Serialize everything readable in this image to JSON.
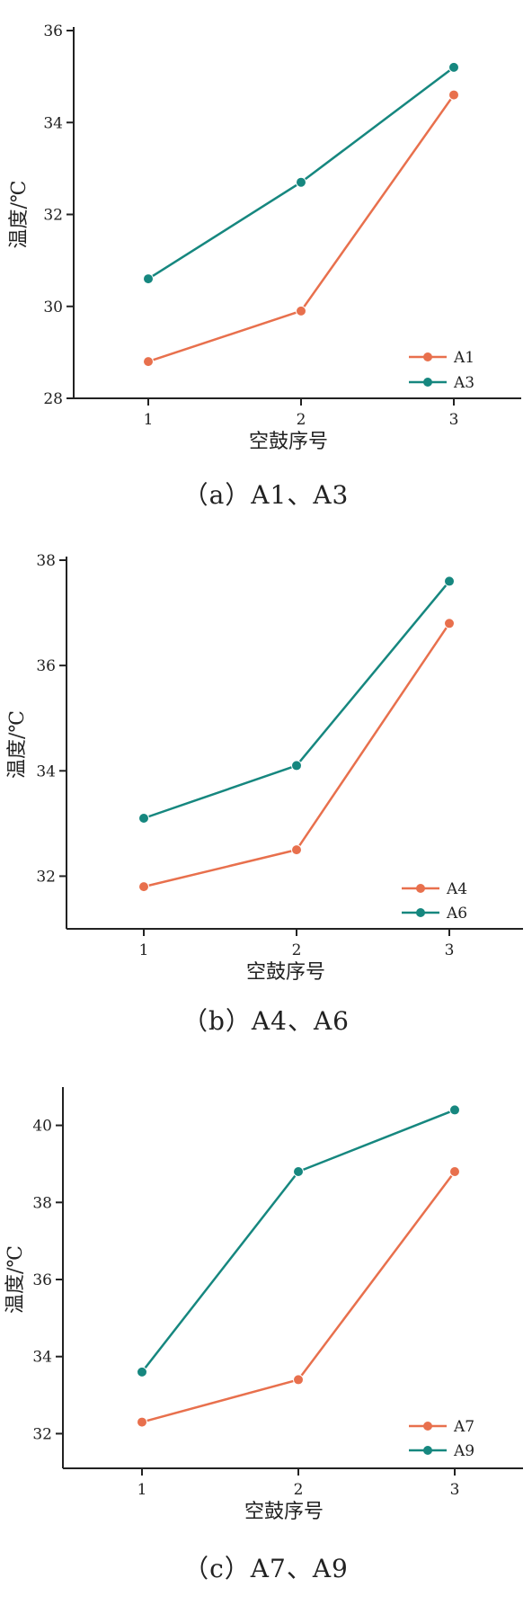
{
  "colors": {
    "orange": "#E8704D",
    "teal": "#16877F"
  },
  "chart_data": [
    {
      "type": "line",
      "caption": "（a）A1、A3",
      "xlabel": "空鼓序号",
      "ylabel": "温度/℃",
      "categories": [
        "1",
        "2",
        "3"
      ],
      "yticks": [
        "28",
        "30",
        "32",
        "34",
        "36"
      ],
      "ylim": [
        28,
        36
      ],
      "legend_position": "bottom-right",
      "series": [
        {
          "name": "A1",
          "values": [
            28.8,
            29.9,
            34.6
          ],
          "color": "#E8704D"
        },
        {
          "name": "A3",
          "values": [
            30.6,
            32.7,
            35.2
          ],
          "color": "#16877F"
        }
      ]
    },
    {
      "type": "line",
      "caption": "（b）A4、A6",
      "xlabel": "空鼓序号",
      "ylabel": "温度/℃",
      "categories": [
        "1",
        "2",
        "3"
      ],
      "yticks": [
        "32",
        "34",
        "36",
        "38"
      ],
      "ylim": [
        31,
        38
      ],
      "legend_position": "bottom-right",
      "series": [
        {
          "name": "A4",
          "values": [
            31.8,
            32.5,
            36.8
          ],
          "color": "#E8704D"
        },
        {
          "name": "A6",
          "values": [
            33.1,
            34.1,
            37.6
          ],
          "color": "#16877F"
        }
      ]
    },
    {
      "type": "line",
      "caption": "（c）A7、A9",
      "xlabel": "空鼓序号",
      "ylabel": "温度/℃",
      "categories": [
        "1",
        "2",
        "3"
      ],
      "yticks": [
        "32",
        "34",
        "36",
        "38",
        "40"
      ],
      "ylim": [
        31.1,
        40.9
      ],
      "legend_position": "bottom-right",
      "series": [
        {
          "name": "A7",
          "values": [
            32.3,
            33.4,
            38.8
          ],
          "color": "#E8704D"
        },
        {
          "name": "A9",
          "values": [
            33.6,
            38.8,
            40.4
          ],
          "color": "#16877F"
        }
      ]
    }
  ]
}
